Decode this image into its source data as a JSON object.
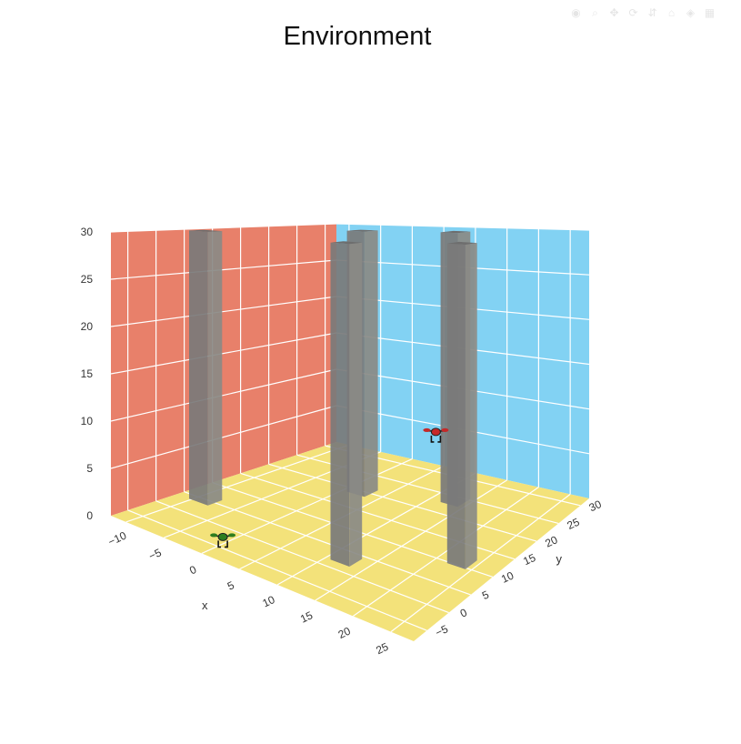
{
  "chart_data": {
    "type": "scatter3d",
    "title": "Environment",
    "axes": {
      "x": {
        "label": "x",
        "ticks": [
          "−10",
          "−5",
          "0",
          "5",
          "10",
          "15",
          "20",
          "25"
        ],
        "range": [
          -12,
          28
        ]
      },
      "y": {
        "label": "y",
        "ticks": [
          "−5",
          "0",
          "5",
          "10",
          "15",
          "20",
          "25",
          "30"
        ],
        "range": [
          -8,
          32
        ]
      },
      "z": {
        "label": "",
        "ticks": [
          "0",
          "5",
          "10",
          "15",
          "20",
          "25",
          "30"
        ],
        "range": [
          0,
          30
        ]
      }
    },
    "walls": {
      "xz": "#e8806a",
      "yz": "#82d2f3",
      "floor": "#f3e27a",
      "grid": "#ffffff"
    },
    "obstacles": [
      {
        "name": "pillar-1",
        "x": -9,
        "y": 5,
        "height": 30
      },
      {
        "name": "pillar-2",
        "x": 2,
        "y": 20,
        "height": 30
      },
      {
        "name": "pillar-3",
        "x": 12,
        "y": 3,
        "height": 30
      },
      {
        "name": "pillar-4",
        "x": 13,
        "y": 24,
        "height": 30
      },
      {
        "name": "pillar-5",
        "x": 23,
        "y": 11,
        "height": 30
      }
    ],
    "agents": [
      {
        "name": "green-drone",
        "x": 0,
        "y": -4,
        "z": 0.5,
        "color": "#2e7d1f"
      },
      {
        "name": "red-drone",
        "x": 10,
        "y": 24,
        "z": 7,
        "color": "#c62828"
      }
    ],
    "pillar_color": "#7a7a7a",
    "grid": true
  },
  "modebar": [
    "camera-icon",
    "zoom-icon",
    "pan-icon",
    "orbit-icon",
    "turntable-icon",
    "home-icon",
    "hover-icon",
    "plotly-logo-icon"
  ]
}
